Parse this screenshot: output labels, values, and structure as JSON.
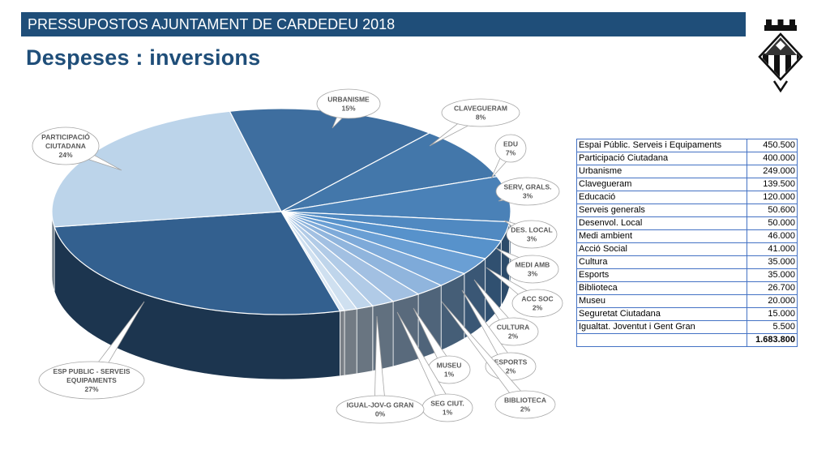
{
  "header": {
    "title": "PRESSUPOSTOS AJUNTAMENT DE CARDEDEU 2018"
  },
  "page": {
    "title": "Despeses : inversions"
  },
  "table": {
    "rows": [
      {
        "label": "Espai Públic. Serveis i Equipaments",
        "value": "450.500"
      },
      {
        "label": "Participació Ciutadana",
        "value": "400.000"
      },
      {
        "label": "Urbanisme",
        "value": "249.000"
      },
      {
        "label": "Clavegueram",
        "value": "139.500"
      },
      {
        "label": "Educació",
        "value": "120.000"
      },
      {
        "label": "Serveis generals",
        "value": "50.600"
      },
      {
        "label": "Desenvol. Local",
        "value": "50.000"
      },
      {
        "label": "Medi ambient",
        "value": "46.000"
      },
      {
        "label": "Acció Social",
        "value": "41.000"
      },
      {
        "label": "Cultura",
        "value": "35.000"
      },
      {
        "label": "Esports",
        "value": "35.000"
      },
      {
        "label": "Biblioteca",
        "value": "26.700"
      },
      {
        "label": "Museu",
        "value": "20.000"
      },
      {
        "label": "Seguretat Ciutadana",
        "value": "15.000"
      },
      {
        "label": "Igualtat. Joventut i Gent Gran",
        "value": "5.500"
      }
    ],
    "total": "1.683.800"
  },
  "chart_data": {
    "type": "pie",
    "title": "",
    "slices": [
      {
        "label": "URBANISME",
        "pct": "15%",
        "value": 249000,
        "color": "#3e6e9f"
      },
      {
        "label": "CLAVEGUERAM",
        "pct": "8%",
        "value": 139500,
        "color": "#4377aa"
      },
      {
        "label": "EDU",
        "pct": "7%",
        "value": 120000,
        "color": "#4a81b7"
      },
      {
        "label": "SERV, GRALS.",
        "pct": "3%",
        "value": 50600,
        "color": "#5089c1"
      },
      {
        "label": "DES. LOCAL",
        "pct": "3%",
        "value": 50000,
        "color": "#5792cb"
      },
      {
        "label": "MEDI AMB",
        "pct": "3%",
        "value": 46000,
        "color": "#6a9fd4"
      },
      {
        "label": "ACC SOC",
        "pct": "2%",
        "value": 41000,
        "color": "#7eaad9"
      },
      {
        "label": "CULTURA",
        "pct": "2%",
        "value": 35000,
        "color": "#90b5dd"
      },
      {
        "label": "ESPORTS",
        "pct": "2%",
        "value": 35000,
        "color": "#a2c0e2"
      },
      {
        "label": "BIBLIOTECA",
        "pct": "2%",
        "value": 26700,
        "color": "#b1cbe7"
      },
      {
        "label": "MUSEU",
        "pct": "1%",
        "value": 20000,
        "color": "#bfd5eb"
      },
      {
        "label": "SEG CIUT.",
        "pct": "1%",
        "value": 15000,
        "color": "#cfe0f0"
      },
      {
        "label": "IGUAL-JOV-G GRAN",
        "pct": "0%",
        "value": 5500,
        "color": "#dde9f5"
      },
      {
        "label": "ESP PUBLIC - SERVEIS EQUIPAMENTS",
        "pct": "27%",
        "value": 450500,
        "color": "#33608f"
      },
      {
        "label": "PARTICIPACIÓ CIUTADANA",
        "pct": "24%",
        "value": 400000,
        "color": "#bcd4ea"
      }
    ]
  }
}
